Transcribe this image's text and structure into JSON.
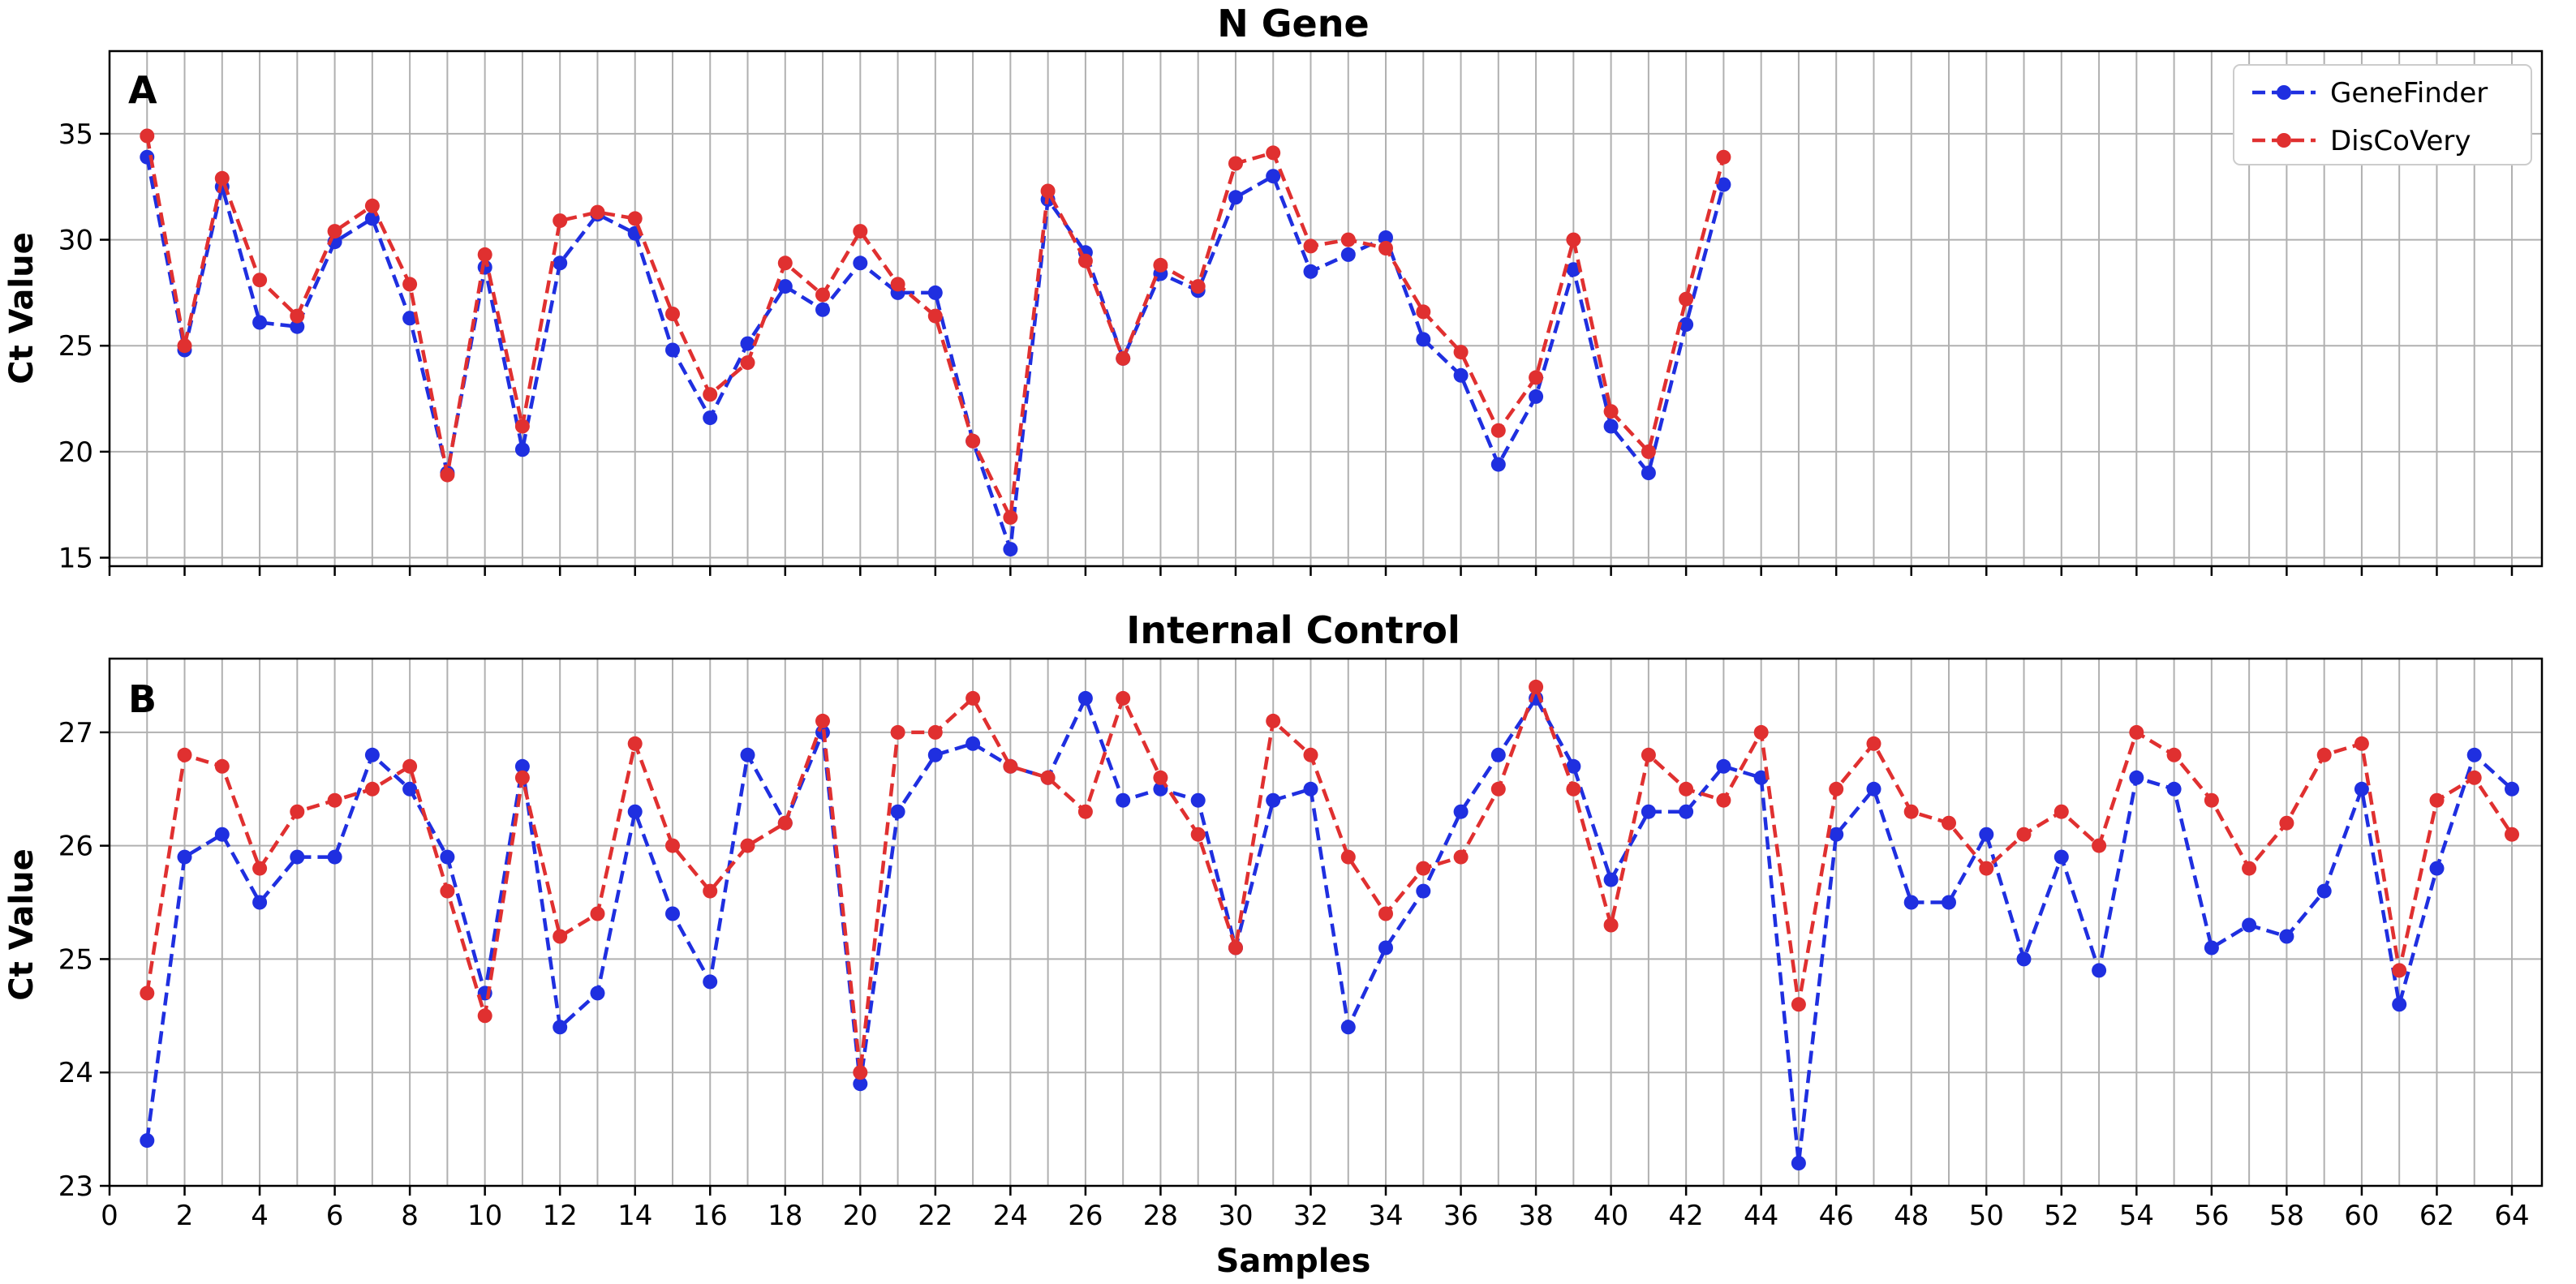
{
  "colors": {
    "genefinder": "#1f2fe0",
    "discovery": "#e03030"
  },
  "legend": {
    "placement": "top-right",
    "entries": [
      "GeneFinder",
      "DisCoVery"
    ]
  },
  "xlabel": "Samples",
  "chart_data": [
    {
      "panel": "A",
      "type": "line",
      "title": "N Gene",
      "xlabel": "",
      "ylabel": "Ct Value",
      "xlim": [
        0,
        64.8
      ],
      "ylim": [
        14.6,
        38.9
      ],
      "xticks": [
        0,
        2,
        4,
        6,
        8,
        10,
        12,
        14,
        16,
        18,
        20,
        22,
        24,
        26,
        28,
        30,
        32,
        34,
        36,
        38,
        40,
        42,
        44,
        46,
        48,
        50,
        52,
        54,
        56,
        58,
        60,
        62,
        64
      ],
      "yticks": [
        15,
        20,
        25,
        30,
        35
      ],
      "grid": true,
      "legend": "top-right",
      "x": [
        1,
        2,
        3,
        4,
        5,
        6,
        7,
        8,
        9,
        10,
        11,
        12,
        13,
        14,
        15,
        16,
        17,
        18,
        19,
        20,
        21,
        22,
        23,
        24,
        25,
        26,
        27,
        28,
        29,
        30,
        31,
        32,
        33,
        34,
        35,
        36,
        37,
        38,
        39,
        40,
        41,
        42,
        43
      ],
      "series": [
        {
          "name": "GeneFinder",
          "color": "#1f2fe0",
          "values": [
            33.9,
            24.8,
            32.5,
            26.1,
            25.9,
            29.9,
            31.0,
            26.3,
            19.0,
            28.7,
            20.1,
            28.9,
            31.2,
            30.3,
            24.8,
            21.6,
            25.1,
            27.8,
            26.7,
            28.9,
            27.5,
            27.5,
            20.5,
            15.4,
            31.9,
            29.4,
            24.4,
            28.4,
            27.6,
            32.0,
            33.0,
            28.5,
            29.3,
            30.1,
            25.3,
            23.6,
            19.4,
            22.6,
            28.6,
            21.2,
            19.0,
            26.0,
            32.6
          ]
        },
        {
          "name": "DisCoVery",
          "color": "#e03030",
          "values": [
            34.9,
            25.0,
            32.9,
            28.1,
            26.4,
            30.4,
            31.6,
            27.9,
            18.9,
            29.3,
            21.2,
            30.9,
            31.3,
            31.0,
            26.5,
            22.7,
            24.2,
            28.9,
            27.4,
            30.4,
            27.9,
            26.4,
            20.5,
            16.9,
            32.3,
            29.0,
            24.4,
            28.8,
            27.8,
            33.6,
            34.1,
            29.7,
            30.0,
            29.6,
            26.6,
            24.7,
            21.0,
            23.5,
            30.0,
            21.9,
            20.0,
            27.2,
            33.9
          ]
        }
      ]
    },
    {
      "panel": "B",
      "type": "line",
      "title": "Internal Control",
      "xlabel": "Samples",
      "ylabel": "Ct Value",
      "xlim": [
        0,
        64.8
      ],
      "ylim": [
        23.0,
        27.65
      ],
      "xticks": [
        0,
        2,
        4,
        6,
        8,
        10,
        12,
        14,
        16,
        18,
        20,
        22,
        24,
        26,
        28,
        30,
        32,
        34,
        36,
        38,
        40,
        42,
        44,
        46,
        48,
        50,
        52,
        54,
        56,
        58,
        60,
        62,
        64
      ],
      "yticks": [
        23,
        24,
        25,
        26,
        27
      ],
      "grid": true,
      "x": [
        1,
        2,
        3,
        4,
        5,
        6,
        7,
        8,
        9,
        10,
        11,
        12,
        13,
        14,
        15,
        16,
        17,
        18,
        19,
        20,
        21,
        22,
        23,
        24,
        25,
        26,
        27,
        28,
        29,
        30,
        31,
        32,
        33,
        34,
        35,
        36,
        37,
        38,
        39,
        40,
        41,
        42,
        43,
        44,
        45,
        46,
        47,
        48,
        49,
        50,
        51,
        52,
        53,
        54,
        55,
        56,
        57,
        58,
        59,
        60,
        61,
        62,
        63,
        64
      ],
      "series": [
        {
          "name": "GeneFinder",
          "color": "#1f2fe0",
          "values": [
            23.4,
            25.9,
            26.1,
            25.5,
            25.9,
            25.9,
            26.8,
            26.5,
            25.9,
            24.7,
            26.7,
            24.4,
            24.7,
            26.3,
            25.4,
            24.8,
            26.8,
            26.2,
            27.0,
            23.9,
            26.3,
            26.8,
            26.9,
            26.7,
            26.6,
            27.3,
            26.4,
            26.5,
            26.4,
            25.1,
            26.4,
            26.5,
            24.4,
            25.1,
            25.6,
            26.3,
            26.8,
            27.3,
            26.7,
            25.7,
            26.3,
            26.3,
            26.7,
            26.6,
            23.2,
            26.1,
            26.5,
            25.5,
            25.5,
            26.1,
            25.0,
            25.9,
            24.9,
            26.6,
            26.5,
            25.1,
            25.3,
            25.2,
            25.6,
            26.5,
            24.6,
            25.8,
            26.8,
            26.5
          ]
        },
        {
          "name": "DisCoVery",
          "color": "#e03030",
          "values": [
            24.7,
            26.8,
            26.7,
            25.8,
            26.3,
            26.4,
            26.5,
            26.7,
            25.6,
            24.5,
            26.6,
            25.2,
            25.4,
            26.9,
            26.0,
            25.6,
            26.0,
            26.2,
            27.1,
            24.0,
            27.0,
            27.0,
            27.3,
            26.7,
            26.6,
            26.3,
            27.3,
            26.6,
            26.1,
            25.1,
            27.1,
            26.8,
            25.9,
            25.4,
            25.8,
            25.9,
            26.5,
            27.4,
            26.5,
            25.3,
            26.8,
            26.5,
            26.4,
            27.0,
            24.6,
            26.5,
            26.9,
            26.3,
            26.2,
            25.8,
            26.1,
            26.3,
            26.0,
            27.0,
            26.8,
            26.4,
            25.8,
            26.2,
            26.8,
            26.9,
            24.9,
            26.4,
            26.6,
            26.1
          ]
        }
      ]
    }
  ]
}
